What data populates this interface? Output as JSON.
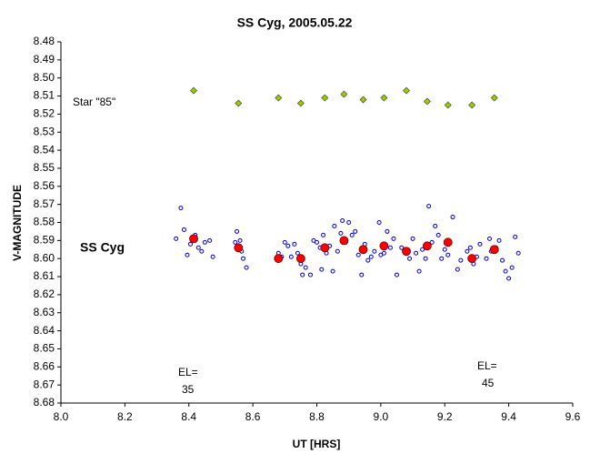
{
  "chart_data": {
    "type": "scatter",
    "title": "SS Cyg, 2005.05.22",
    "xlabel": "UT [HRS]",
    "ylabel": "V-MAGNITUDE",
    "xlim": [
      8.0,
      9.6
    ],
    "xticks": [
      {
        "value": 8.0,
        "label": "8.0"
      },
      8.2,
      8.4,
      8.6,
      8.8,
      {
        "value": 9.0,
        "label": "9.0"
      },
      9.2,
      9.4,
      9.6
    ],
    "ylim": [
      8.48,
      8.68
    ],
    "y_inverted": true,
    "yticks": [
      8.48,
      8.49,
      {
        "value": 8.5,
        "label": "8.50"
      },
      8.51,
      8.52,
      8.53,
      8.54,
      8.55,
      8.56,
      8.57,
      8.58,
      8.59,
      {
        "value": 8.6,
        "label": "8.60"
      },
      8.61,
      8.62,
      8.63,
      8.64,
      8.65,
      8.66,
      8.67,
      8.68
    ],
    "grid": false,
    "annotations": [
      "Star \"85\"",
      "SS Cyg",
      "EL=",
      "35",
      "EL=",
      "45"
    ],
    "series": [
      {
        "color": "#99cc00",
        "marker": "diamond",
        "x": [
          8.415,
          8.555,
          8.68,
          8.75,
          8.825,
          8.885,
          8.945,
          9.01,
          9.08,
          9.145,
          9.21,
          9.285,
          9.355
        ],
        "values": [
          8.507,
          8.514,
          8.511,
          8.514,
          8.511,
          8.509,
          8.512,
          8.511,
          8.507,
          8.513,
          8.515,
          8.515,
          8.511
        ]
      },
      {
        "color": "#0000cc",
        "marker": "circle-open",
        "x": [
          8.36,
          8.375,
          8.385,
          8.395,
          8.405,
          8.42,
          8.43,
          8.44,
          8.45,
          8.465,
          8.475,
          8.545,
          8.55,
          8.56,
          8.565,
          8.57,
          8.58,
          8.68,
          8.69,
          8.7,
          8.71,
          8.72,
          8.73,
          8.74,
          8.75,
          8.755,
          8.765,
          8.78,
          8.79,
          8.8,
          8.81,
          8.815,
          8.82,
          8.83,
          8.84,
          8.85,
          8.855,
          8.865,
          8.875,
          8.88,
          8.89,
          8.9,
          8.91,
          8.92,
          8.93,
          8.94,
          8.95,
          8.96,
          8.97,
          8.98,
          8.995,
          9.0,
          9.01,
          9.02,
          9.03,
          9.04,
          9.05,
          9.065,
          9.075,
          9.09,
          9.1,
          9.11,
          9.12,
          9.13,
          9.14,
          9.15,
          9.16,
          9.17,
          9.18,
          9.19,
          9.2,
          9.21,
          9.225,
          9.24,
          9.25,
          9.27,
          9.28,
          9.29,
          9.3,
          9.31,
          9.33,
          9.34,
          9.345,
          9.36,
          9.37,
          9.38,
          9.39,
          9.4,
          9.41,
          9.42,
          9.43
        ],
        "values": [
          8.589,
          8.572,
          8.584,
          8.598,
          8.592,
          8.587,
          8.594,
          8.596,
          8.591,
          8.59,
          8.599,
          8.591,
          8.585,
          8.59,
          8.596,
          8.6,
          8.605,
          8.597,
          8.599,
          8.591,
          8.593,
          8.599,
          8.592,
          8.597,
          8.603,
          8.609,
          8.605,
          8.609,
          8.59,
          8.591,
          8.594,
          8.606,
          8.587,
          8.597,
          8.593,
          8.607,
          8.582,
          8.596,
          8.586,
          8.579,
          8.591,
          8.58,
          8.587,
          8.585,
          8.598,
          8.609,
          8.592,
          8.601,
          8.599,
          8.596,
          8.58,
          8.598,
          8.597,
          8.585,
          8.594,
          8.589,
          8.609,
          8.594,
          8.595,
          8.6,
          8.589,
          8.597,
          8.607,
          8.595,
          8.6,
          8.571,
          8.591,
          8.582,
          8.587,
          8.6,
          8.595,
          8.598,
          8.577,
          8.606,
          8.601,
          8.596,
          8.594,
          8.603,
          8.599,
          8.592,
          8.6,
          8.589,
          8.596,
          8.594,
          8.59,
          8.601,
          8.607,
          8.611,
          8.605,
          8.588,
          8.597
        ]
      },
      {
        "color": "#ff0000",
        "marker": "circle",
        "x": [
          8.415,
          8.555,
          8.68,
          8.75,
          8.825,
          8.885,
          8.945,
          9.01,
          9.08,
          9.145,
          9.21,
          9.285,
          9.355
        ],
        "values": [
          8.589,
          8.594,
          8.6,
          8.6,
          8.594,
          8.59,
          8.595,
          8.593,
          8.596,
          8.593,
          8.591,
          8.6,
          8.595
        ]
      }
    ]
  }
}
